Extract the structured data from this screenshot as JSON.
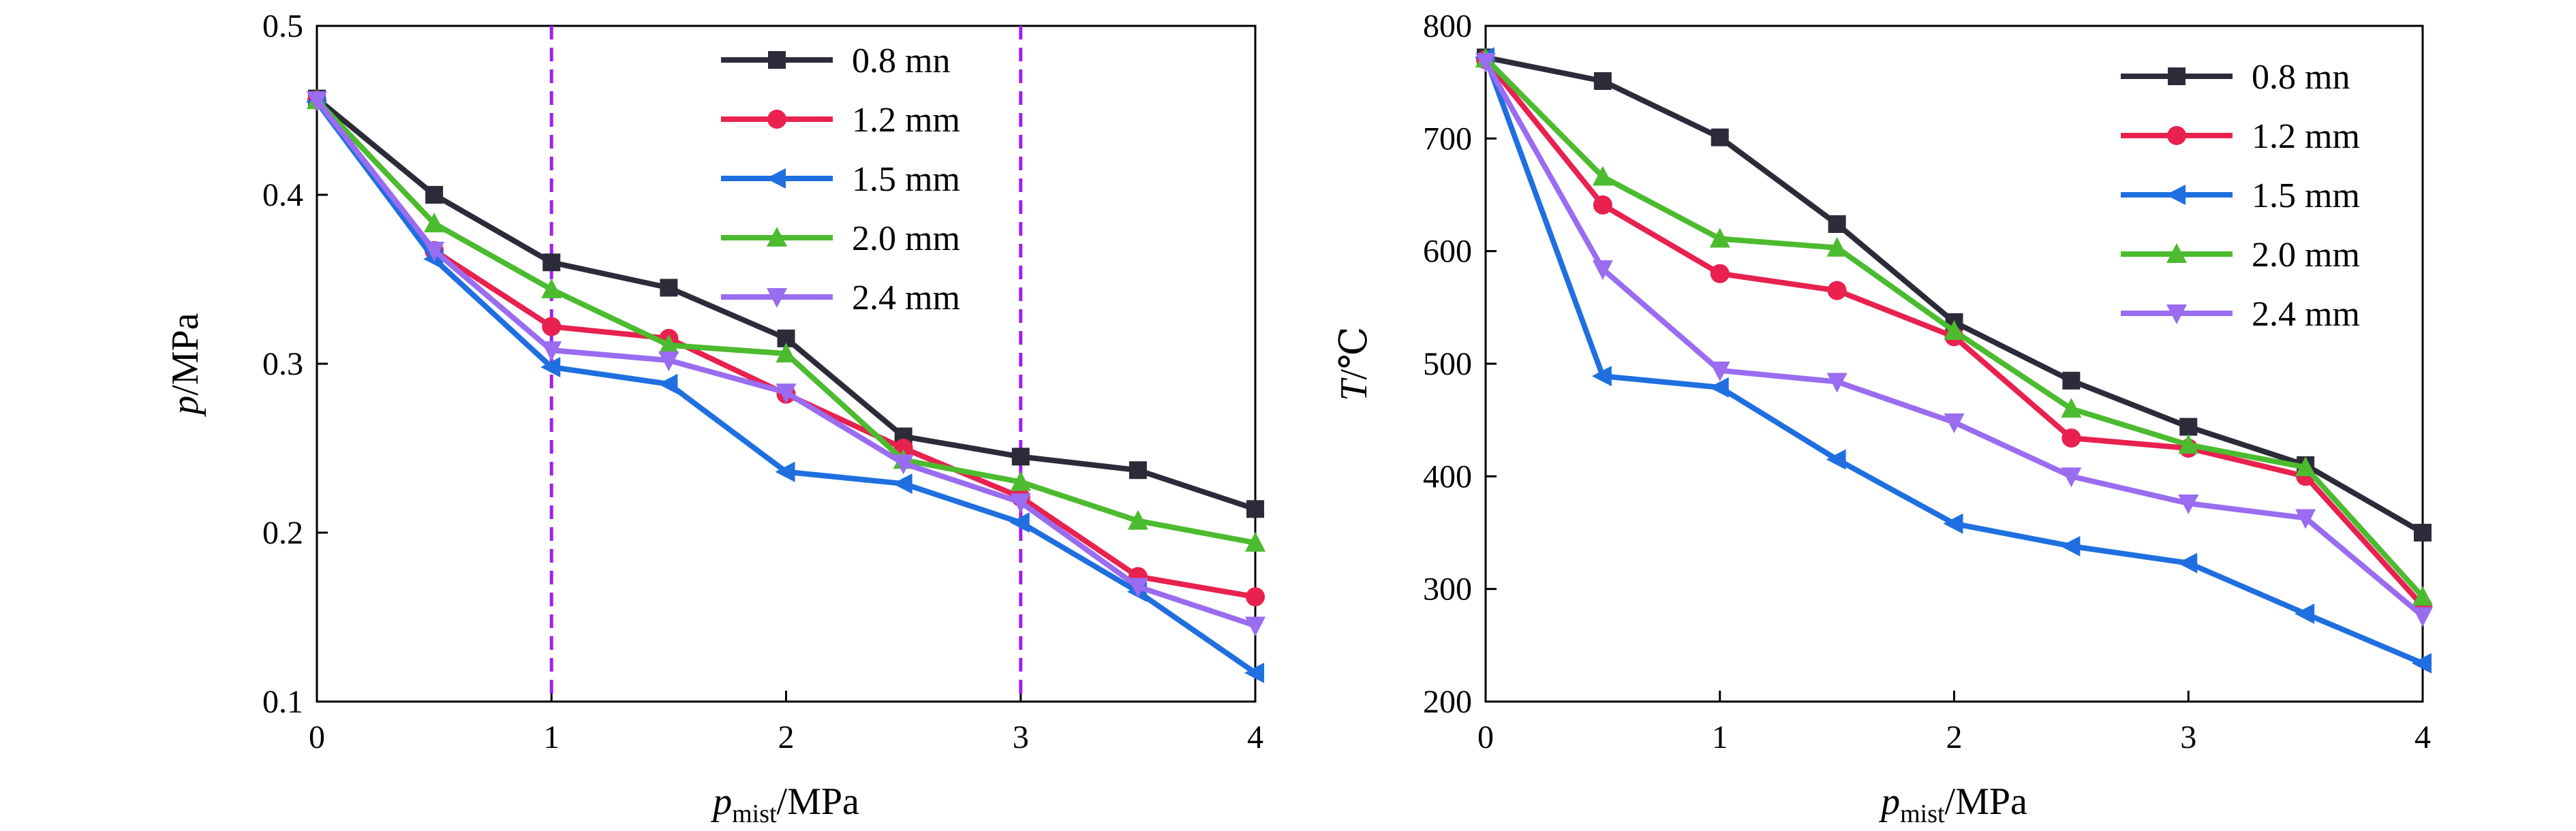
{
  "chart_data": [
    {
      "type": "line",
      "xlabel": {
        "symbol": "p",
        "subscript": "mist",
        "unit": "/MPa"
      },
      "ylabel": {
        "symbol": "p",
        "unit": "/MPa"
      },
      "xlim": [
        0,
        4
      ],
      "ylim": [
        0.1,
        0.5
      ],
      "xticks": [
        0,
        1,
        2,
        3,
        4
      ],
      "yticks": [
        0.1,
        0.2,
        0.3,
        0.4,
        0.5
      ],
      "xtick_labels": [
        "0",
        "1",
        "2",
        "3",
        "4"
      ],
      "ytick_labels": [
        "0.1",
        "0.2",
        "0.3",
        "0.4",
        "0.5"
      ],
      "legend_position": "top-right",
      "grid": false,
      "vlines": [
        1,
        3
      ],
      "vline_color": "#a020f0",
      "x": [
        0,
        0.5,
        1,
        1.5,
        2,
        2.5,
        3,
        3.5,
        4
      ],
      "series": [
        {
          "name": "0.8 mn",
          "color": "#2b2b3a",
          "marker": "square",
          "values": [
            0.457,
            0.4,
            0.36,
            0.345,
            0.315,
            0.257,
            0.245,
            0.237,
            0.214
          ]
        },
        {
          "name": "1.2 mm",
          "color": "#e8214f",
          "marker": "circle",
          "values": [
            0.456,
            0.367,
            0.322,
            0.315,
            0.282,
            0.25,
            0.221,
            0.174,
            0.162
          ]
        },
        {
          "name": "1.5 mm",
          "color": "#1f6fe0",
          "marker": "triangle-left",
          "values": [
            0.455,
            0.362,
            0.298,
            0.288,
            0.236,
            0.229,
            0.206,
            0.165,
            0.117
          ]
        },
        {
          "name": "2.0 mm",
          "color": "#4cbb2f",
          "marker": "triangle-up",
          "values": [
            0.456,
            0.383,
            0.344,
            0.311,
            0.306,
            0.243,
            0.23,
            0.207,
            0.194
          ]
        },
        {
          "name": "2.4 mm",
          "color": "#9a6cf0",
          "marker": "triangle-down",
          "values": [
            0.456,
            0.367,
            0.308,
            0.302,
            0.283,
            0.241,
            0.218,
            0.168,
            0.145
          ]
        }
      ]
    },
    {
      "type": "line",
      "xlabel": {
        "symbol": "p",
        "subscript": "mist",
        "unit": "/MPa"
      },
      "ylabel": {
        "symbol": "T",
        "unit": "/℃"
      },
      "xlim": [
        0,
        4
      ],
      "ylim": [
        200,
        800
      ],
      "xticks": [
        0,
        1,
        2,
        3,
        4
      ],
      "yticks": [
        200,
        300,
        400,
        500,
        600,
        700,
        800
      ],
      "xtick_labels": [
        "0",
        "1",
        "2",
        "3",
        "4"
      ],
      "ytick_labels": [
        "200",
        "300",
        "400",
        "500",
        "600",
        "700",
        "800"
      ],
      "legend_position": "top-right",
      "grid": false,
      "x": [
        0,
        0.5,
        1,
        1.5,
        2,
        2.5,
        3,
        3.5,
        4
      ],
      "series": [
        {
          "name": "0.8 mn",
          "color": "#2b2b3a",
          "marker": "square",
          "values": [
            772,
            751,
            701,
            624,
            537,
            485,
            444,
            410,
            350
          ]
        },
        {
          "name": "1.2 mm",
          "color": "#e8214f",
          "marker": "circle",
          "values": [
            770,
            641,
            580,
            565,
            524,
            434,
            425,
            400,
            285
          ]
        },
        {
          "name": "1.5 mm",
          "color": "#1f6fe0",
          "marker": "triangle-left",
          "values": [
            772,
            489,
            479,
            415,
            358,
            338,
            323,
            278,
            234
          ]
        },
        {
          "name": "2.0 mm",
          "color": "#4cbb2f",
          "marker": "triangle-up",
          "values": [
            771,
            666,
            611,
            603,
            529,
            460,
            428,
            408,
            293
          ]
        },
        {
          "name": "2.4 mm",
          "color": "#9a6cf0",
          "marker": "triangle-down",
          "values": [
            768,
            584,
            494,
            484,
            448,
            400,
            376,
            363,
            276
          ]
        }
      ]
    }
  ]
}
